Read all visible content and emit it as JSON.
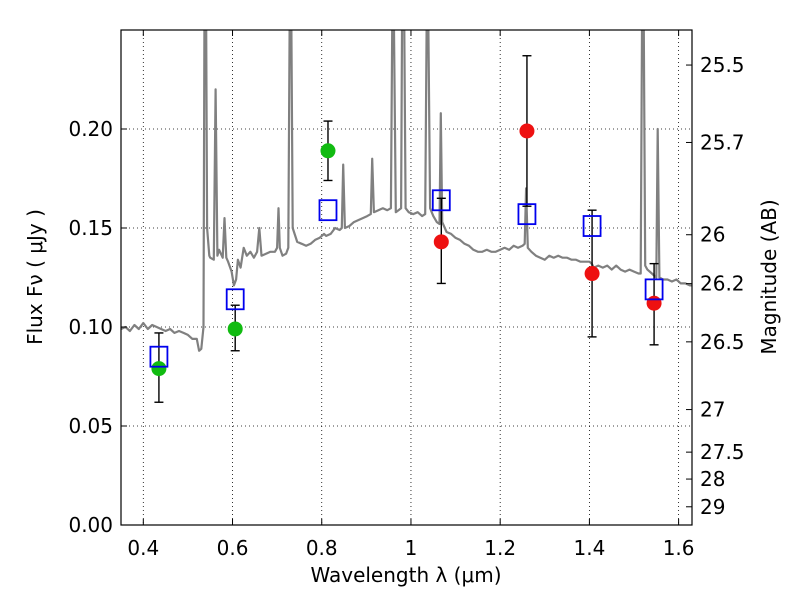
{
  "chart_data": {
    "type": "scatter",
    "xlabel": "Wavelength  λ (μm)",
    "ylabel": "Flux  Fν  ( μJy )",
    "y2label": "Magnitude (AB)",
    "xlim": [
      0.35,
      1.63
    ],
    "ylim": [
      0.0,
      0.25
    ],
    "x_ticks": [
      0.4,
      0.6,
      0.8,
      1.0,
      1.2,
      1.4,
      1.6
    ],
    "x_tick_labels": [
      "0.4",
      "0.6",
      "0.8",
      "1",
      "1.2",
      "1.4",
      "1.6"
    ],
    "y_ticks": [
      0.0,
      0.05,
      0.1,
      0.15,
      0.2
    ],
    "y_tick_labels": [
      "0.00",
      "0.05",
      "0.10",
      "0.15",
      "0.20"
    ],
    "right_ticks": [
      {
        "label": "25.5",
        "flux": 0.2323
      },
      {
        "label": "25.7",
        "flux": 0.1932
      },
      {
        "label": "26",
        "flux": 0.1466
      },
      {
        "label": "26.2",
        "flux": 0.1219
      },
      {
        "label": "26.5",
        "flux": 0.0925
      },
      {
        "label": "27",
        "flux": 0.0583
      },
      {
        "label": "27.5",
        "flux": 0.0368
      },
      {
        "label": "28",
        "flux": 0.0232
      },
      {
        "label": "29",
        "flux": 0.0092
      }
    ],
    "grid": true,
    "colors": {
      "spectrum": "#808080",
      "detection": "#11bb11",
      "photo_z": "#ee1111",
      "model": "#0000ee",
      "errorbar": "#000000"
    },
    "series": [
      {
        "marker": "circle-green",
        "points": [
          {
            "x": 0.435,
            "y": 0.079,
            "err_lo": 0.062,
            "err_hi": 0.097
          },
          {
            "x": 0.606,
            "y": 0.099,
            "err_lo": 0.088,
            "err_hi": 0.111
          },
          {
            "x": 0.814,
            "y": 0.189,
            "err_lo": 0.174,
            "err_hi": 0.204
          }
        ]
      },
      {
        "marker": "circle-red",
        "points": [
          {
            "x": 1.068,
            "y": 0.143,
            "err_lo": 0.122,
            "err_hi": 0.165
          },
          {
            "x": 1.26,
            "y": 0.199,
            "err_lo": 0.161,
            "err_hi": 0.237
          },
          {
            "x": 1.406,
            "y": 0.127,
            "err_lo": 0.095,
            "err_hi": 0.159
          },
          {
            "x": 1.545,
            "y": 0.112,
            "err_lo": 0.091,
            "err_hi": 0.132
          }
        ]
      },
      {
        "marker": "square-blue-open",
        "points": [
          {
            "x": 0.435,
            "y": 0.085
          },
          {
            "x": 0.606,
            "y": 0.114
          },
          {
            "x": 0.814,
            "y": 0.159
          },
          {
            "x": 1.068,
            "y": 0.164
          },
          {
            "x": 1.26,
            "y": 0.157
          },
          {
            "x": 1.406,
            "y": 0.151
          },
          {
            "x": 1.545,
            "y": 0.119
          }
        ]
      }
    ],
    "spectrum": [
      [
        0.35,
        0.099
      ],
      [
        0.36,
        0.1
      ],
      [
        0.37,
        0.098
      ],
      [
        0.38,
        0.101
      ],
      [
        0.39,
        0.099
      ],
      [
        0.4,
        0.102
      ],
      [
        0.41,
        0.099
      ],
      [
        0.42,
        0.101
      ],
      [
        0.43,
        0.1
      ],
      [
        0.44,
        0.099
      ],
      [
        0.45,
        0.098
      ],
      [
        0.46,
        0.099
      ],
      [
        0.47,
        0.097
      ],
      [
        0.48,
        0.098
      ],
      [
        0.49,
        0.097
      ],
      [
        0.5,
        0.096
      ],
      [
        0.51,
        0.094
      ],
      [
        0.52,
        0.094
      ],
      [
        0.525,
        0.088
      ],
      [
        0.53,
        0.089
      ],
      [
        0.535,
        0.1
      ],
      [
        0.537,
        0.25
      ],
      [
        0.541,
        0.25
      ],
      [
        0.543,
        0.15
      ],
      [
        0.548,
        0.136
      ],
      [
        0.55,
        0.135
      ],
      [
        0.558,
        0.134
      ],
      [
        0.562,
        0.22
      ],
      [
        0.566,
        0.136
      ],
      [
        0.57,
        0.139
      ],
      [
        0.578,
        0.135
      ],
      [
        0.582,
        0.155
      ],
      [
        0.586,
        0.135
      ],
      [
        0.59,
        0.133
      ],
      [
        0.598,
        0.128
      ],
      [
        0.603,
        0.121
      ],
      [
        0.608,
        0.124
      ],
      [
        0.612,
        0.134
      ],
      [
        0.618,
        0.13
      ],
      [
        0.625,
        0.14
      ],
      [
        0.632,
        0.136
      ],
      [
        0.64,
        0.138
      ],
      [
        0.648,
        0.135
      ],
      [
        0.655,
        0.138
      ],
      [
        0.66,
        0.15
      ],
      [
        0.665,
        0.136
      ],
      [
        0.675,
        0.137
      ],
      [
        0.685,
        0.138
      ],
      [
        0.695,
        0.138
      ],
      [
        0.7,
        0.14
      ],
      [
        0.703,
        0.16
      ],
      [
        0.706,
        0.14
      ],
      [
        0.712,
        0.136
      ],
      [
        0.72,
        0.137
      ],
      [
        0.725,
        0.14
      ],
      [
        0.728,
        0.25
      ],
      [
        0.732,
        0.25
      ],
      [
        0.735,
        0.15
      ],
      [
        0.745,
        0.143
      ],
      [
        0.755,
        0.142
      ],
      [
        0.765,
        0.141
      ],
      [
        0.775,
        0.142
      ],
      [
        0.785,
        0.144
      ],
      [
        0.795,
        0.145
      ],
      [
        0.805,
        0.147
      ],
      [
        0.81,
        0.146
      ],
      [
        0.82,
        0.147
      ],
      [
        0.83,
        0.15
      ],
      [
        0.84,
        0.149
      ],
      [
        0.845,
        0.15
      ],
      [
        0.848,
        0.182
      ],
      [
        0.852,
        0.15
      ],
      [
        0.862,
        0.151
      ],
      [
        0.872,
        0.153
      ],
      [
        0.882,
        0.154
      ],
      [
        0.892,
        0.155
      ],
      [
        0.902,
        0.156
      ],
      [
        0.91,
        0.157
      ],
      [
        0.913,
        0.185
      ],
      [
        0.917,
        0.158
      ],
      [
        0.927,
        0.159
      ],
      [
        0.937,
        0.16
      ],
      [
        0.947,
        0.159
      ],
      [
        0.955,
        0.16
      ],
      [
        0.958,
        0.25
      ],
      [
        0.962,
        0.25
      ],
      [
        0.966,
        0.158
      ],
      [
        0.972,
        0.159
      ],
      [
        0.978,
        0.16
      ],
      [
        0.98,
        0.25
      ],
      [
        0.985,
        0.25
      ],
      [
        0.988,
        0.16
      ],
      [
        0.995,
        0.158
      ],
      [
        1.005,
        0.157
      ],
      [
        1.015,
        0.158
      ],
      [
        1.025,
        0.156
      ],
      [
        1.032,
        0.157
      ],
      [
        1.035,
        0.25
      ],
      [
        1.039,
        0.25
      ],
      [
        1.043,
        0.16
      ],
      [
        1.05,
        0.156
      ],
      [
        1.058,
        0.153
      ],
      [
        1.064,
        0.152
      ],
      [
        1.067,
        0.208
      ],
      [
        1.07,
        0.153
      ],
      [
        1.08,
        0.148
      ],
      [
        1.09,
        0.147
      ],
      [
        1.1,
        0.145
      ],
      [
        1.11,
        0.144
      ],
      [
        1.12,
        0.142
      ],
      [
        1.13,
        0.141
      ],
      [
        1.14,
        0.139
      ],
      [
        1.15,
        0.138
      ],
      [
        1.16,
        0.138
      ],
      [
        1.17,
        0.139
      ],
      [
        1.18,
        0.138
      ],
      [
        1.19,
        0.138
      ],
      [
        1.2,
        0.139
      ],
      [
        1.21,
        0.14
      ],
      [
        1.22,
        0.139
      ],
      [
        1.23,
        0.141
      ],
      [
        1.24,
        0.14
      ],
      [
        1.25,
        0.141
      ],
      [
        1.255,
        0.142
      ],
      [
        1.258,
        0.17
      ],
      [
        1.262,
        0.14
      ],
      [
        1.27,
        0.138
      ],
      [
        1.28,
        0.136
      ],
      [
        1.29,
        0.135
      ],
      [
        1.3,
        0.134
      ],
      [
        1.31,
        0.136
      ],
      [
        1.32,
        0.135
      ],
      [
        1.33,
        0.136
      ],
      [
        1.34,
        0.135
      ],
      [
        1.35,
        0.135
      ],
      [
        1.36,
        0.134
      ],
      [
        1.37,
        0.134
      ],
      [
        1.38,
        0.133
      ],
      [
        1.39,
        0.133
      ],
      [
        1.4,
        0.133
      ],
      [
        1.405,
        0.132
      ],
      [
        1.41,
        0.13
      ],
      [
        1.42,
        0.131
      ],
      [
        1.43,
        0.13
      ],
      [
        1.44,
        0.131
      ],
      [
        1.45,
        0.129
      ],
      [
        1.46,
        0.131
      ],
      [
        1.47,
        0.129
      ],
      [
        1.48,
        0.128
      ],
      [
        1.49,
        0.129
      ],
      [
        1.5,
        0.128
      ],
      [
        1.51,
        0.127
      ],
      [
        1.515,
        0.127
      ],
      [
        1.518,
        0.25
      ],
      [
        1.522,
        0.25
      ],
      [
        1.525,
        0.131
      ],
      [
        1.53,
        0.129
      ],
      [
        1.54,
        0.127
      ],
      [
        1.545,
        0.126
      ],
      [
        1.55,
        0.125
      ],
      [
        1.553,
        0.2
      ],
      [
        1.557,
        0.125
      ],
      [
        1.565,
        0.124
      ],
      [
        1.575,
        0.124
      ],
      [
        1.585,
        0.123
      ],
      [
        1.595,
        0.124
      ],
      [
        1.605,
        0.122
      ],
      [
        1.615,
        0.122
      ],
      [
        1.625,
        0.121
      ],
      [
        1.63,
        0.121
      ]
    ]
  }
}
